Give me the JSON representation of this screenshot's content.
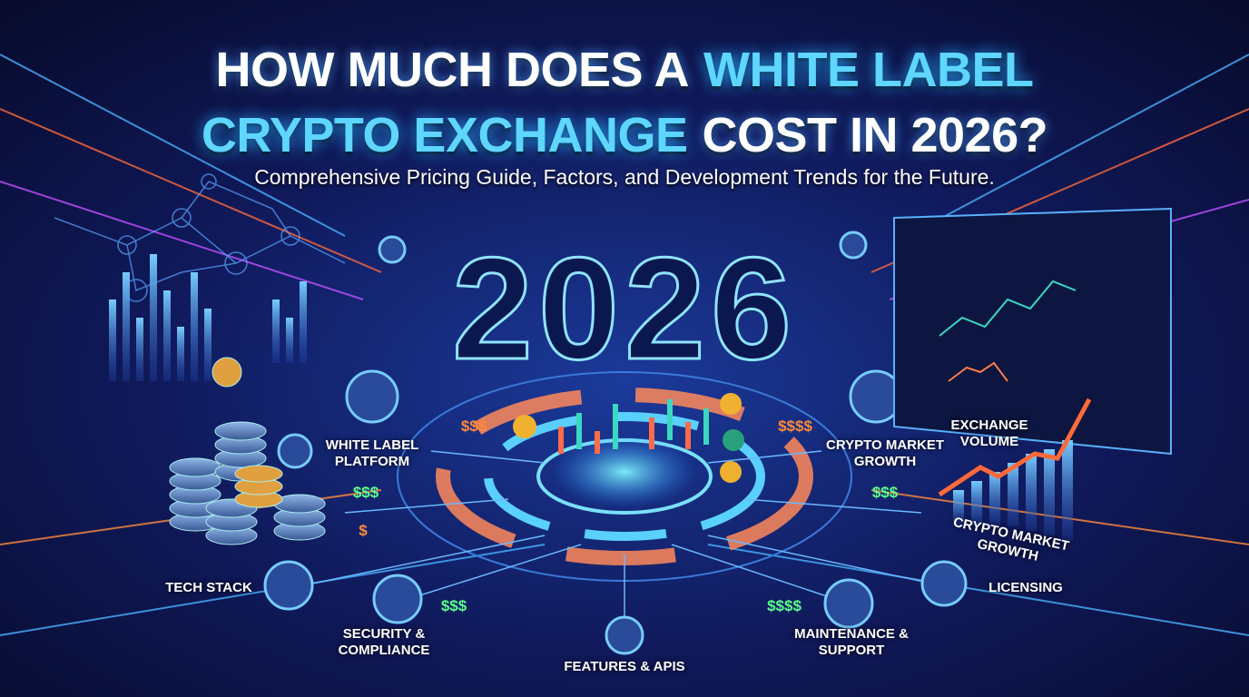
{
  "header": {
    "title": {
      "line1": [
        "HOW MUCH DOES A",
        "WHITE LABEL"
      ],
      "line2": [
        "CRYPTO EXCHANGE",
        "COST IN 2026?"
      ]
    },
    "subtitle": "Comprehensive Pricing Guide, Factors, and Development Trends for the Future."
  },
  "hero_year": "2026",
  "labels": [
    "WHITE LABEL PLATFORM",
    "CRYPTO MARKET GROWTH",
    "EXCHANGE VOLUME",
    "CRYPTO MARKET GROWTH",
    "TECH STACK",
    "SECURITY & COMPLIANCE",
    "FEATURES & APIS",
    "MAINTENANCE & SUPPORT",
    "LICENSING"
  ],
  "price_tags": [
    "$$$",
    "$$$",
    "$",
    "$$$",
    "$$$$",
    "$$$",
    "$$$$"
  ]
}
